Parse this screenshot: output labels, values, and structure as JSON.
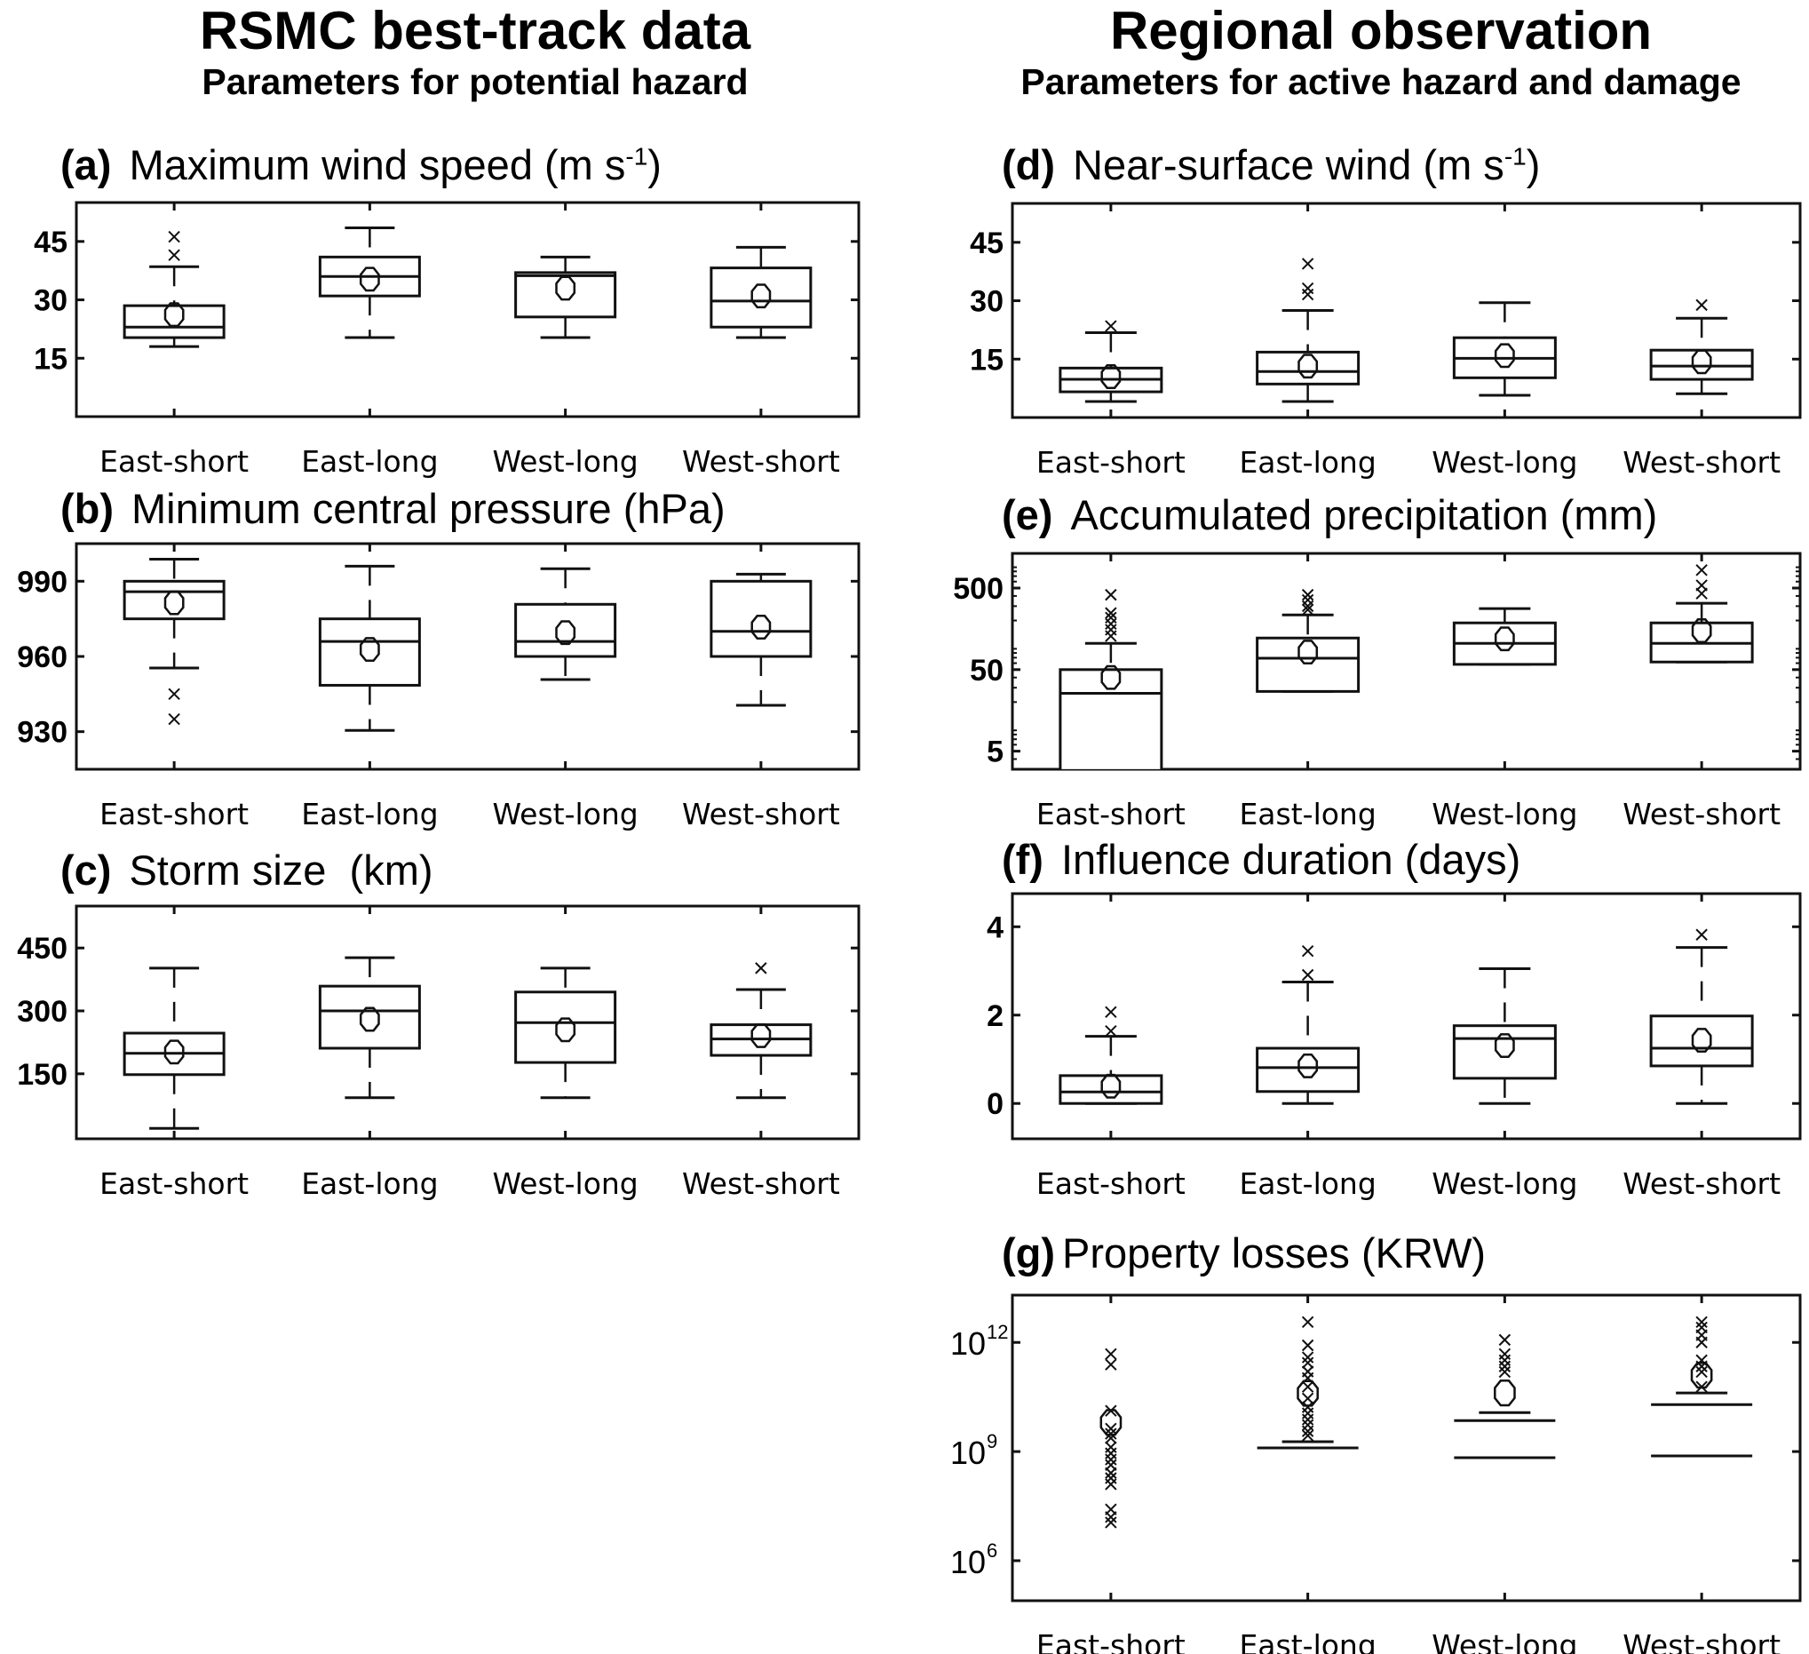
{
  "columns": [
    {
      "title": "RSMC best-track data",
      "subtitle": "Parameters for potential hazard"
    },
    {
      "title": "Regional observation",
      "subtitle": "Parameters for active hazard and damage"
    }
  ],
  "chart_data": [
    {
      "id": "a",
      "tag": "(a)",
      "title": "Maximum wind speed (m s",
      "title_sup": "-1",
      "title_end": ")",
      "type": "box",
      "scale": "linear",
      "ylim": [
        0,
        55
      ],
      "yticks": [
        15,
        30,
        45
      ],
      "ytick_labels": [
        "15",
        "30",
        "45"
      ],
      "categories": [
        "East-short",
        "East-long",
        "West-long",
        "West-short"
      ],
      "boxes": [
        {
          "low": 18,
          "q1": 20.3,
          "median": 23,
          "q3": 28.5,
          "high": 38.5,
          "mean": 26.2,
          "outliers": [
            41.5,
            46.2
          ]
        },
        {
          "low": 20.3,
          "q1": 31,
          "median": 36,
          "q3": 41,
          "high": 48.5,
          "mean": 35.3,
          "outliers": []
        },
        {
          "low": 20.3,
          "q1": 25.6,
          "median": 36.2,
          "q3": 37,
          "high": 41,
          "mean": 33,
          "outliers": []
        },
        {
          "low": 20.3,
          "q1": 23,
          "median": 29.7,
          "q3": 38.2,
          "high": 43.5,
          "mean": 31,
          "outliers": []
        }
      ]
    },
    {
      "id": "b",
      "tag": "(b)",
      "title": "Minimum central pressure (hPa)",
      "title_sup": "",
      "title_end": "",
      "type": "box",
      "scale": "linear",
      "ylim": [
        915,
        1005
      ],
      "yticks": [
        930,
        960,
        990
      ],
      "ytick_labels": [
        "930",
        "960",
        "990"
      ],
      "categories": [
        "East-short",
        "East-long",
        "West-long",
        "West-short"
      ],
      "boxes": [
        {
          "low": 955.4,
          "q1": 975,
          "median": 985.8,
          "q3": 990,
          "high": 998.8,
          "mean": 981.4,
          "outliers": [
            945,
            935
          ]
        },
        {
          "low": 930.5,
          "q1": 948.5,
          "median": 966,
          "q3": 975,
          "high": 996,
          "mean": 962.8,
          "outliers": []
        },
        {
          "low": 950.8,
          "q1": 960,
          "median": 966,
          "q3": 980.8,
          "high": 995,
          "mean": 969.5,
          "outliers": []
        },
        {
          "low": 940.5,
          "q1": 960,
          "median": 970,
          "q3": 990,
          "high": 992.8,
          "mean": 971.7,
          "outliers": []
        }
      ]
    },
    {
      "id": "c",
      "tag": "(c)",
      "title": "Storm size  (km)",
      "title_sup": "",
      "title_end": "",
      "type": "box",
      "scale": "linear",
      "ylim": [
        -5,
        550
      ],
      "yticks": [
        150,
        300,
        450
      ],
      "ytick_labels": [
        "150",
        "300",
        "450"
      ],
      "categories": [
        "East-short",
        "East-long",
        "West-long",
        "West-short"
      ],
      "boxes": [
        {
          "low": 20,
          "q1": 148,
          "median": 199,
          "q3": 247,
          "high": 402,
          "mean": 202,
          "outliers": []
        },
        {
          "low": 93,
          "q1": 211,
          "median": 300,
          "q3": 359,
          "high": 427,
          "mean": 280,
          "outliers": []
        },
        {
          "low": 93,
          "q1": 177,
          "median": 272,
          "q3": 345,
          "high": 402,
          "mean": 255,
          "outliers": []
        },
        {
          "low": 93,
          "q1": 194,
          "median": 233,
          "q3": 267,
          "high": 351,
          "mean": 241,
          "outliers": [
            402
          ]
        }
      ]
    },
    {
      "id": "d",
      "tag": "(d)",
      "title": "Near-surface wind (m s",
      "title_sup": "-1",
      "title_end": ")",
      "type": "box",
      "scale": "linear",
      "ylim": [
        0,
        55
      ],
      "yticks": [
        15,
        30,
        45
      ],
      "ytick_labels": [
        "15",
        "30",
        "45"
      ],
      "categories": [
        "East-short",
        "East-long",
        "West-long",
        "West-short"
      ],
      "boxes": [
        {
          "low": 4.1,
          "q1": 6.6,
          "median": 9.8,
          "q3": 12.7,
          "high": 21.8,
          "mean": 10.5,
          "outliers": [
            23.5
          ]
        },
        {
          "low": 4.1,
          "q1": 8.6,
          "median": 11.8,
          "q3": 16.8,
          "high": 27.5,
          "mean": 13.2,
          "outliers": [
            31.6,
            33.2,
            39.5
          ]
        },
        {
          "low": 5.7,
          "q1": 10.2,
          "median": 15.2,
          "q3": 20.5,
          "high": 29.5,
          "mean": 15.9,
          "outliers": []
        },
        {
          "low": 6.1,
          "q1": 9.8,
          "median": 13.2,
          "q3": 17.3,
          "high": 25.5,
          "mean": 14.3,
          "outliers": [
            28.9
          ]
        }
      ]
    },
    {
      "id": "e",
      "tag": "(e)",
      "title": "Accumulated precipitation (mm)",
      "title_sup": "",
      "title_end": "",
      "type": "box",
      "scale": "log",
      "ylim": [
        3,
        1330
      ],
      "yticks": [
        5,
        50,
        500
      ],
      "ytick_labels": [
        "5",
        "50",
        "500"
      ],
      "categories": [
        "East-short",
        "East-long",
        "West-long",
        "West-short"
      ],
      "boxes": [
        {
          "low": 2.9,
          "q1": 2.9,
          "median": 25.6,
          "q3": 50,
          "high": 105,
          "mean": 40,
          "outliers": [
            129,
            154,
            182,
            217,
            247,
            413
          ]
        },
        {
          "low": 27,
          "q1": 27,
          "median": 69,
          "q3": 122,
          "high": 234,
          "mean": 82,
          "outliers": [
            272,
            300,
            357,
            413
          ]
        },
        {
          "low": 58,
          "q1": 58,
          "median": 105,
          "q3": 187,
          "high": 280,
          "mean": 119,
          "outliers": []
        },
        {
          "low": 62,
          "q1": 62,
          "median": 105,
          "q3": 187,
          "high": 325,
          "mean": 150,
          "outliers": [
            428,
            540,
            830
          ]
        }
      ]
    },
    {
      "id": "f",
      "tag": "(f)",
      "title": "Influence duration (days)",
      "title_sup": "",
      "title_end": "",
      "type": "box",
      "scale": "linear",
      "ylim": [
        -0.8,
        4.75
      ],
      "yticks": [
        0,
        2,
        4
      ],
      "ytick_labels": [
        "0",
        "2",
        "4"
      ],
      "categories": [
        "East-short",
        "East-long",
        "West-long",
        "West-short"
      ],
      "boxes": [
        {
          "low": 0,
          "q1": 0,
          "median": 0.26,
          "q3": 0.63,
          "high": 1.52,
          "mean": 0.39,
          "outliers": [
            1.64,
            2.07
          ]
        },
        {
          "low": 0,
          "q1": 0.27,
          "median": 0.81,
          "q3": 1.25,
          "high": 2.75,
          "mean": 0.85,
          "outliers": [
            2.91,
            3.45
          ]
        },
        {
          "low": 0,
          "q1": 0.57,
          "median": 1.47,
          "q3": 1.76,
          "high": 3.05,
          "mean": 1.31,
          "outliers": []
        },
        {
          "low": 0,
          "q1": 0.85,
          "median": 1.25,
          "q3": 1.98,
          "high": 3.53,
          "mean": 1.43,
          "outliers": [
            3.82
          ]
        }
      ]
    },
    {
      "id": "g",
      "tag": "(g)",
      "title": "Property losses (KRW)",
      "title_sup": "",
      "title_end": "",
      "type": "box",
      "scale": "log",
      "ylim_exp": [
        4.9,
        13.3
      ],
      "ylim": [
        79000.0,
        20000000000000.0
      ],
      "yticks": [
        1000000.0,
        1000000000.0,
        1000000000000.0
      ],
      "ytick_labels": [
        {
          "base": "10",
          "exp": "6"
        },
        {
          "base": "10",
          "exp": "9"
        },
        {
          "base": "10",
          "exp": "12"
        }
      ],
      "categories": [
        "East-short",
        "East-long",
        "West-long",
        "West-short"
      ],
      "note": "values given as log10(KRW); boxes drawn as horizontal lines only",
      "boxes_log10": [
        {
          "median": null,
          "q3": null,
          "high": null,
          "mean": 9.8,
          "outliers": [
            7.05,
            7.2,
            7.41,
            8.1,
            8.27,
            8.41,
            8.63,
            8.78,
            8.95,
            9.12,
            9.37,
            9.49,
            9.63,
            10.12,
            11.39,
            11.68
          ]
        },
        {
          "median": 9.1,
          "q3": 9.1,
          "high": 9.27,
          "mean": 10.6,
          "outliers": [
            9.44,
            9.56,
            9.73,
            9.88,
            10.05,
            10.22,
            10.46,
            10.78,
            11.02,
            11.2,
            11.44,
            11.59,
            11.92,
            12.56
          ]
        },
        {
          "median": 8.83,
          "q3": 9.85,
          "high": 10.07,
          "mean": 10.61,
          "outliers": [
            11.19,
            11.34,
            11.51,
            11.68,
            12.07
          ]
        },
        {
          "median": 8.88,
          "q3": 10.29,
          "high": 10.61,
          "mean": 11.1,
          "outliers": [
            10.78,
            11.19,
            11.34,
            11.51,
            12.0,
            12.2,
            12.41,
            12.56
          ]
        }
      ]
    }
  ]
}
